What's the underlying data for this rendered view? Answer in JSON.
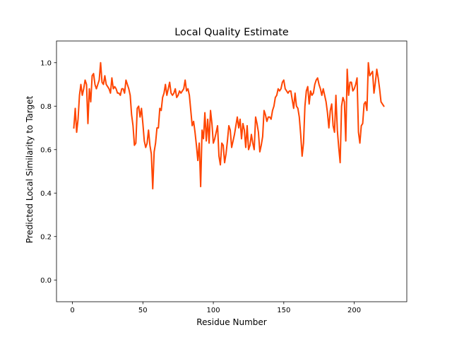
{
  "chart_data": {
    "type": "line",
    "title": "Local Quality Estimate",
    "xlabel": "Residue Number",
    "ylabel": "Predicted Local Similarity to Target",
    "xlim": [
      -11.3,
      237.3
    ],
    "ylim": [
      -0.1,
      1.1
    ],
    "xticks": [
      0,
      50,
      100,
      150,
      200
    ],
    "yticks": [
      0.0,
      0.2,
      0.4,
      0.6,
      0.8,
      1.0
    ],
    "ytick_labels": [
      "0.0",
      "0.2",
      "0.4",
      "0.6",
      "0.8",
      "1.0"
    ],
    "grid": false,
    "legend": "none",
    "series": [
      {
        "color": "#ff4500",
        "x_start": 1,
        "x_step": 1,
        "values": [
          0.7,
          0.79,
          0.68,
          0.74,
          0.85,
          0.9,
          0.85,
          0.88,
          0.92,
          0.9,
          0.72,
          0.88,
          0.82,
          0.94,
          0.95,
          0.9,
          0.88,
          0.9,
          0.92,
          1.0,
          0.91,
          0.9,
          0.94,
          0.9,
          0.89,
          0.88,
          0.86,
          0.93,
          0.88,
          0.89,
          0.88,
          0.86,
          0.86,
          0.85,
          0.88,
          0.88,
          0.86,
          0.92,
          0.9,
          0.88,
          0.85,
          0.76,
          0.71,
          0.62,
          0.63,
          0.79,
          0.8,
          0.75,
          0.79,
          0.72,
          0.64,
          0.61,
          0.63,
          0.69,
          0.62,
          0.58,
          0.42,
          0.59,
          0.63,
          0.7,
          0.7,
          0.79,
          0.78,
          0.84,
          0.86,
          0.9,
          0.85,
          0.88,
          0.91,
          0.86,
          0.85,
          0.86,
          0.88,
          0.84,
          0.85,
          0.87,
          0.86,
          0.87,
          0.88,
          0.92,
          0.87,
          0.88,
          0.85,
          0.78,
          0.71,
          0.73,
          0.68,
          0.62,
          0.55,
          0.63,
          0.43,
          0.69,
          0.65,
          0.77,
          0.64,
          0.74,
          0.63,
          0.78,
          0.72,
          0.63,
          0.65,
          0.68,
          0.71,
          0.57,
          0.53,
          0.63,
          0.62,
          0.54,
          0.58,
          0.64,
          0.71,
          0.69,
          0.61,
          0.64,
          0.67,
          0.71,
          0.75,
          0.7,
          0.74,
          0.65,
          0.72,
          0.69,
          0.61,
          0.71,
          0.6,
          0.62,
          0.67,
          0.63,
          0.6,
          0.75,
          0.72,
          0.68,
          0.59,
          0.62,
          0.66,
          0.78,
          0.76,
          0.73,
          0.75,
          0.75,
          0.74,
          0.78,
          0.8,
          0.84,
          0.85,
          0.88,
          0.87,
          0.88,
          0.91,
          0.92,
          0.88,
          0.87,
          0.86,
          0.87,
          0.87,
          0.83,
          0.79,
          0.86,
          0.8,
          0.79,
          0.75,
          0.67,
          0.57,
          0.63,
          0.8,
          0.87,
          0.89,
          0.81,
          0.87,
          0.85,
          0.86,
          0.9,
          0.92,
          0.93,
          0.9,
          0.88,
          0.85,
          0.88,
          0.85,
          0.82,
          0.77,
          0.7,
          0.78,
          0.81,
          0.71,
          0.68,
          0.85,
          0.69,
          0.61,
          0.54,
          0.8,
          0.84,
          0.82,
          0.64,
          0.97,
          0.85,
          0.91,
          0.91,
          0.87,
          0.88,
          0.9,
          0.93,
          0.68,
          0.63,
          0.71,
          0.72,
          0.81,
          0.82,
          0.78,
          1.0,
          0.94,
          0.95,
          0.96,
          0.86,
          0.91,
          0.97,
          0.93,
          0.88,
          0.82,
          0.81,
          0.8
        ]
      }
    ]
  }
}
